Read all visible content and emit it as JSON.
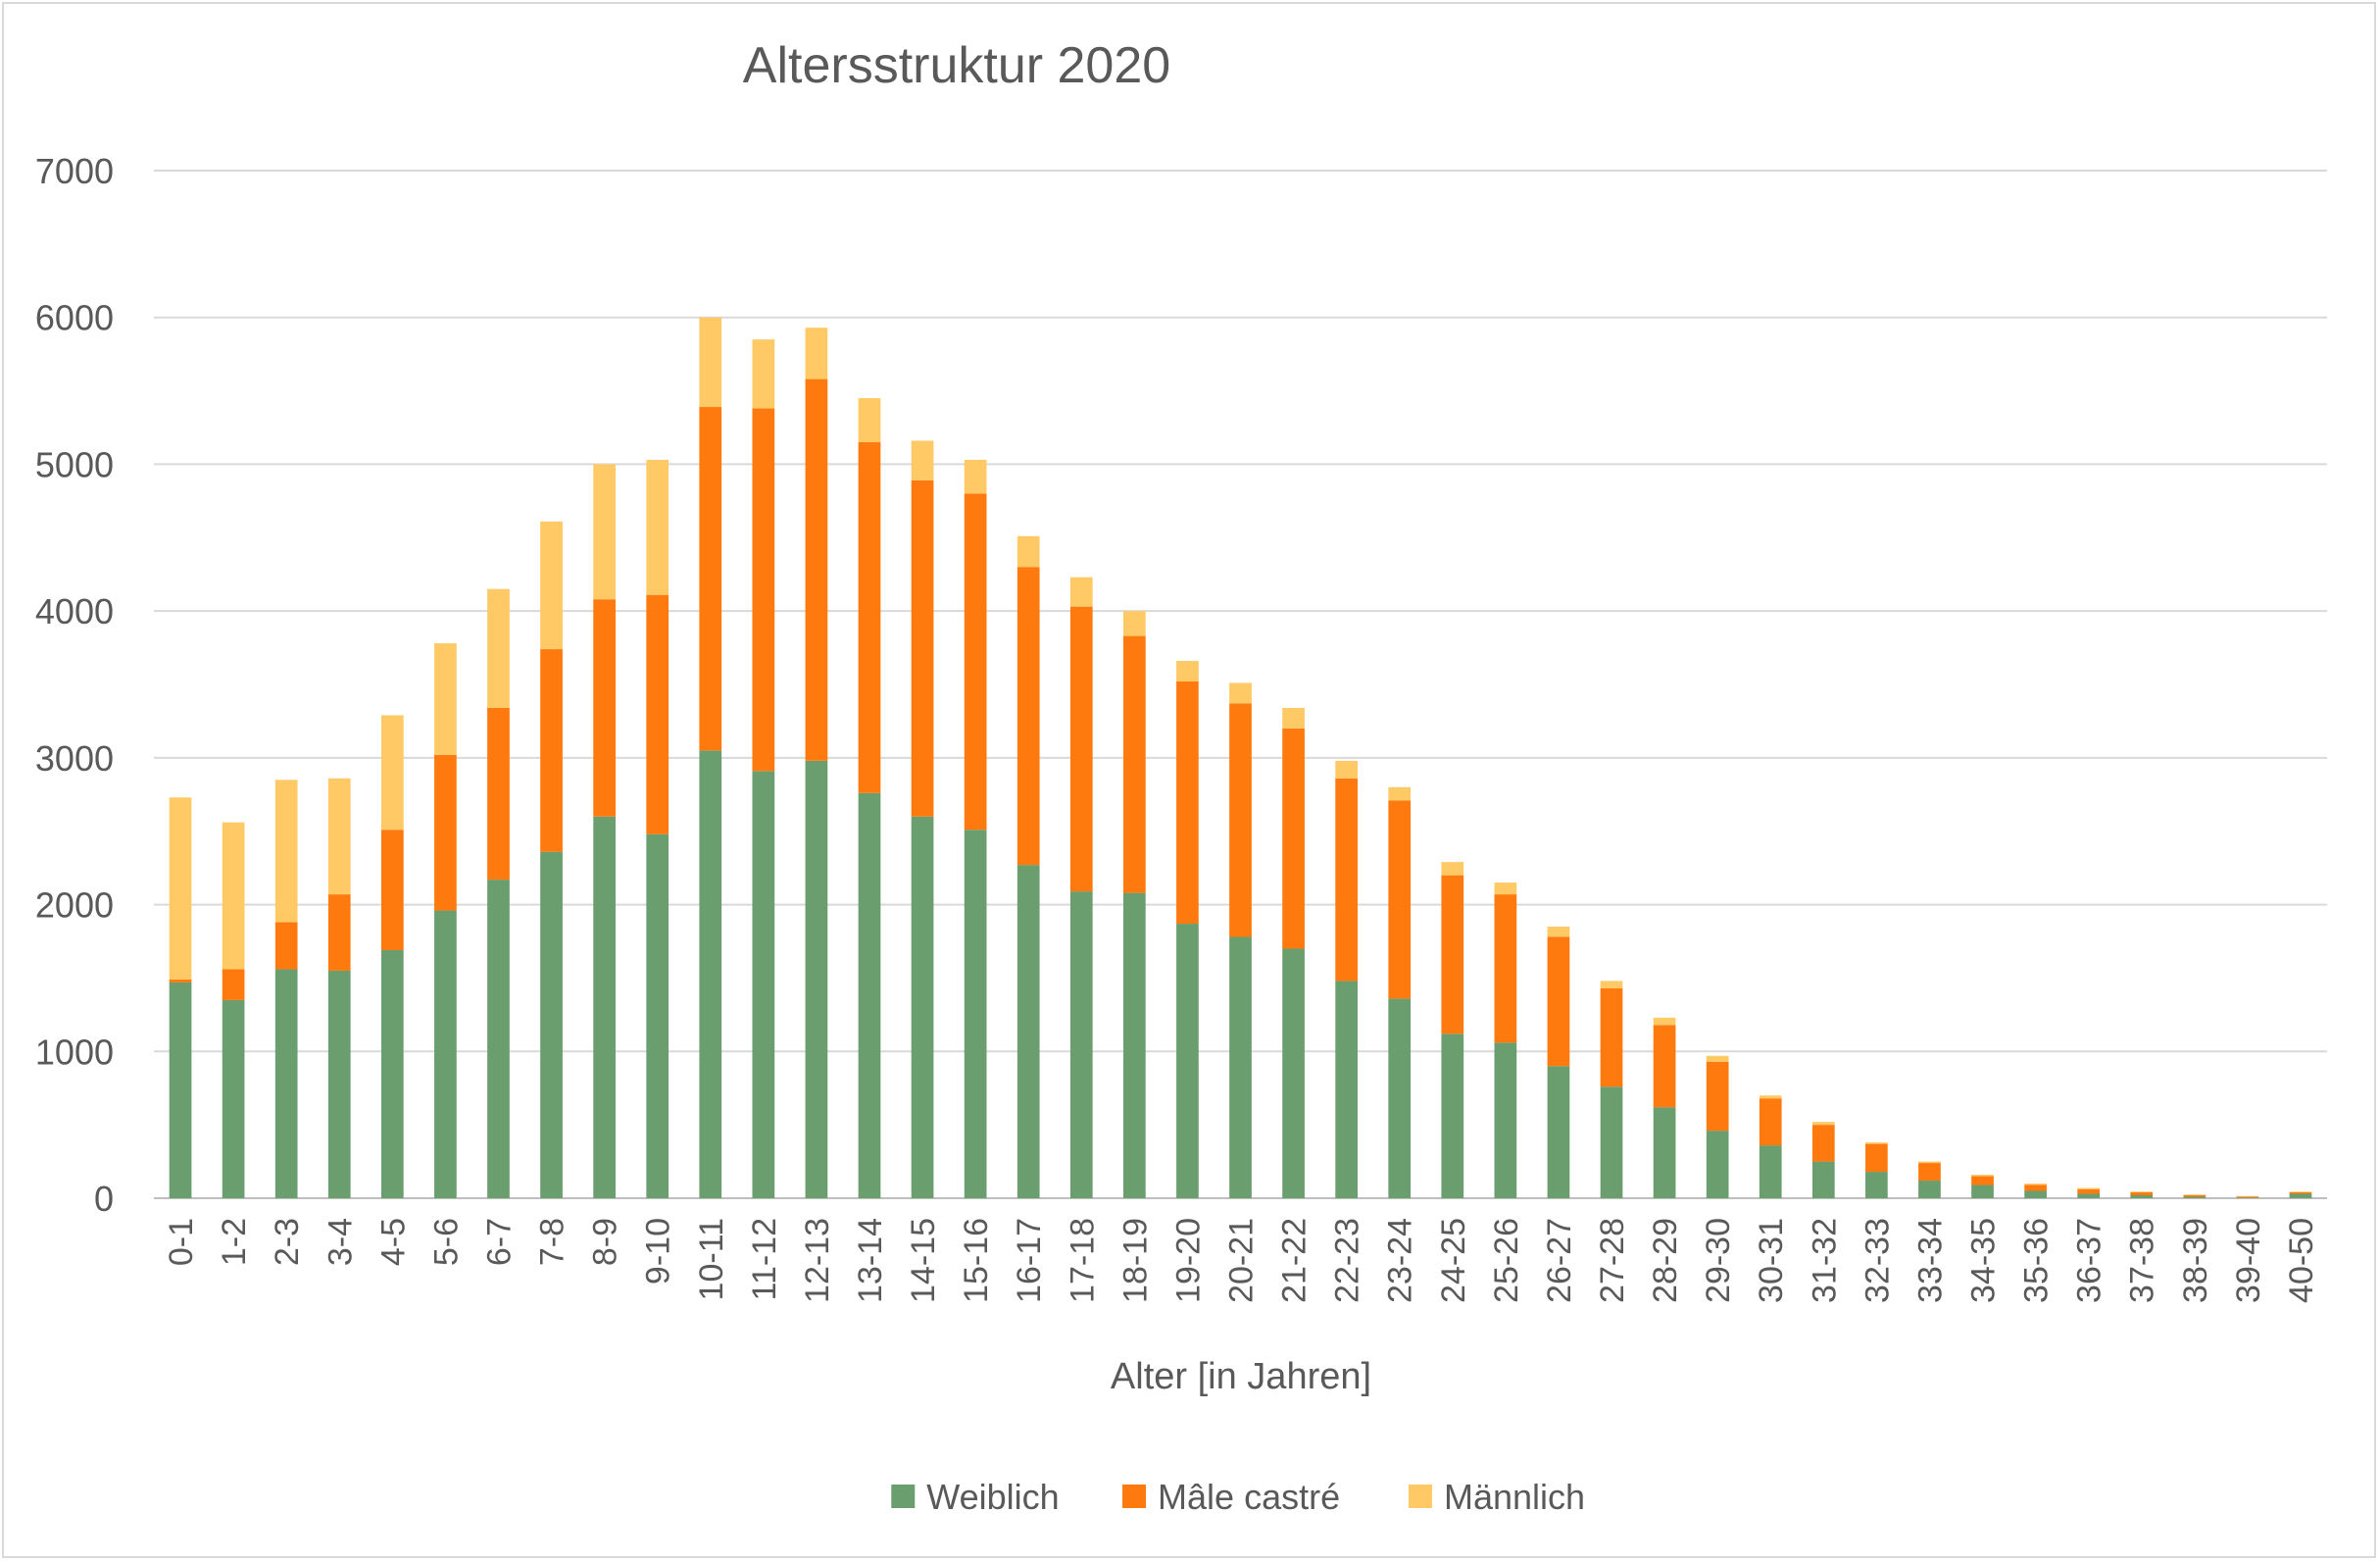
{
  "chart_data": {
    "type": "bar",
    "stacked": true,
    "title": "Altersstruktur 2020",
    "xlabel": "Alter [in Jahren]",
    "ylabel": "",
    "ylim": [
      0,
      7000
    ],
    "yticks": [
      0,
      1000,
      2000,
      3000,
      4000,
      5000,
      6000,
      7000
    ],
    "grid": true,
    "legend_position": "bottom",
    "categories": [
      "0-1",
      "1-2",
      "2-3",
      "3-4",
      "4-5",
      "5-6",
      "6-7",
      "7-8",
      "8-9",
      "9-10",
      "10-11",
      "11-12",
      "12-13",
      "13-14",
      "14-15",
      "15-16",
      "16-17",
      "17-18",
      "18-19",
      "19-20",
      "20-21",
      "21-22",
      "22-23",
      "23-24",
      "24-25",
      "25-26",
      "26-27",
      "27-28",
      "28-29",
      "29-30",
      "30-31",
      "31-32",
      "32-33",
      "33-34",
      "34-35",
      "35-36",
      "36-37",
      "37-38",
      "38-39",
      "39-40",
      "40-50"
    ],
    "series": [
      {
        "name": "Weiblich",
        "color": "#6a9e6f",
        "values": [
          1470,
          1350,
          1560,
          1550,
          1690,
          1960,
          2170,
          2360,
          2600,
          2480,
          3050,
          2910,
          2980,
          2760,
          2600,
          2510,
          2270,
          2090,
          2080,
          1870,
          1780,
          1700,
          1480,
          1360,
          1120,
          1060,
          900,
          760,
          620,
          460,
          360,
          250,
          180,
          120,
          90,
          50,
          30,
          20,
          10,
          5,
          30
        ]
      },
      {
        "name": "Mâle castré",
        "color": "#ff7a0e",
        "values": [
          20,
          210,
          320,
          520,
          820,
          1060,
          1170,
          1380,
          1480,
          1630,
          2340,
          2470,
          2600,
          2390,
          2290,
          2290,
          2030,
          1940,
          1750,
          1650,
          1590,
          1500,
          1380,
          1350,
          1080,
          1010,
          880,
          670,
          560,
          470,
          320,
          250,
          190,
          120,
          60,
          40,
          30,
          20,
          10,
          5,
          10
        ]
      },
      {
        "name": "Männlich",
        "color": "#ffc966",
        "values": [
          1240,
          1000,
          970,
          790,
          780,
          760,
          810,
          870,
          920,
          920,
          610,
          470,
          350,
          300,
          270,
          230,
          210,
          200,
          170,
          140,
          140,
          140,
          120,
          90,
          90,
          80,
          70,
          50,
          50,
          40,
          20,
          20,
          10,
          10,
          10,
          10,
          10,
          5,
          5,
          5,
          5
        ]
      }
    ]
  }
}
